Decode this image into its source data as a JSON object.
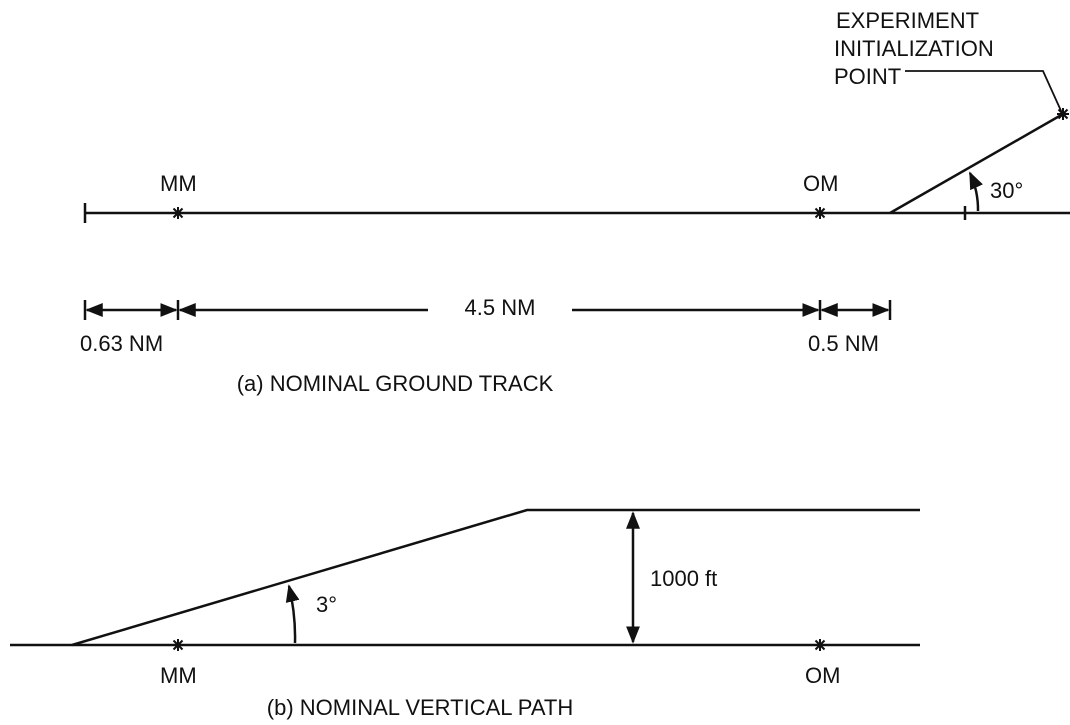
{
  "ground_track": {
    "annotation": [
      "EXPERIMENT",
      "INITIALIZATION",
      "POINT"
    ],
    "markers": [
      "MM",
      "OM"
    ],
    "angle": "30°",
    "distances": [
      "0.63 NM",
      "4.5 NM",
      "0.5 NM"
    ],
    "caption": "(a) NOMINAL GROUND TRACK"
  },
  "vertical_path": {
    "angle": "3°",
    "altitude": "1000 ft",
    "markers": [
      "MM",
      "OM"
    ],
    "caption": "(b) NOMINAL VERTICAL PATH"
  }
}
